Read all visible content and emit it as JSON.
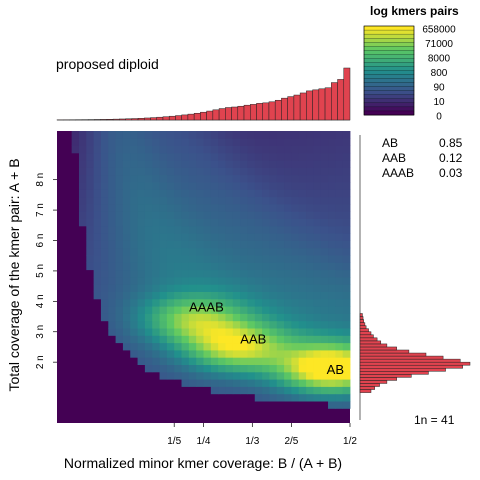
{
  "chart_data": {
    "type": "heatmap",
    "title": "proposed diploid",
    "xlabel": "Normalized minor kmer coverage: B / (A + B)",
    "ylabel": "Total coverage of the kmer pair: A + B",
    "xlim": [
      0,
      0.5
    ],
    "ylim": [
      0,
      9.6
    ],
    "x_ticks": [
      {
        "value": 0.2,
        "label": "1/5"
      },
      {
        "value": 0.25,
        "label": "1/4"
      },
      {
        "value": 0.3333,
        "label": "1/3"
      },
      {
        "value": 0.4,
        "label": "2/5"
      },
      {
        "value": 0.5,
        "label": "1/2"
      }
    ],
    "y_ticks": [
      {
        "value": 2,
        "label": "2 n"
      },
      {
        "value": 3,
        "label": "3 n"
      },
      {
        "value": 4,
        "label": "4 n"
      },
      {
        "value": 5,
        "label": "5 n"
      },
      {
        "value": 6,
        "label": "6 n"
      },
      {
        "value": 7,
        "label": "7 n"
      },
      {
        "value": 8,
        "label": "8 n"
      }
    ],
    "legend": {
      "title": "log kmers pairs",
      "labels": [
        "658000",
        "71000",
        "8000",
        "800",
        "90",
        "10",
        "0"
      ],
      "position": "top-right",
      "palette": [
        "#440154",
        "#3B528B",
        "#21908C",
        "#5DC863",
        "#FDE725"
      ]
    },
    "peaks": [
      {
        "label": "AB",
        "x": 0.465,
        "y": 1.8,
        "intensity": 1.0
      },
      {
        "label": "AAB",
        "x": 0.305,
        "y": 2.5,
        "intensity": 0.74
      },
      {
        "label": "AAAB",
        "x": 0.23,
        "y": 3.4,
        "intensity": 0.58
      }
    ],
    "annotations": [
      {
        "label": "AB",
        "x": 0.475,
        "y": 1.75
      },
      {
        "label": "AAB",
        "x": 0.335,
        "y": 2.75
      },
      {
        "label": "AAAB",
        "x": 0.255,
        "y": 3.8
      }
    ],
    "proportions": [
      {
        "name": "AB",
        "value": "0.85"
      },
      {
        "name": "AAB",
        "value": "0.12"
      },
      {
        "name": "AAAB",
        "value": "0.03"
      }
    ],
    "scale_note": "1n =  41",
    "x_hist": [
      0.3,
      0.4,
      0.5,
      0.6,
      0.7,
      0.8,
      1.0,
      1.2,
      1.4,
      1.7,
      2.0,
      2.4,
      2.8,
      3.3,
      3.9,
      4.6,
      5.4,
      6.3,
      7.3,
      8.5,
      9.8,
      11.3,
      13.0,
      15.0,
      17.2,
      19.6,
      22.0,
      24.0,
      25.0,
      26.5,
      28.5,
      30.0,
      32.0,
      33.0,
      35.0,
      38.0,
      42.0,
      45.0,
      48.0,
      52.0,
      56.0,
      58.0,
      60.0,
      62.0,
      72.0,
      78.0,
      100.0
    ],
    "y_hist": [
      {
        "y": 1.0,
        "count": 9
      },
      {
        "y": 1.1,
        "count": 12
      },
      {
        "y": 1.2,
        "count": 16
      },
      {
        "y": 1.3,
        "count": 22
      },
      {
        "y": 1.4,
        "count": 30
      },
      {
        "y": 1.5,
        "count": 42
      },
      {
        "y": 1.6,
        "count": 56
      },
      {
        "y": 1.7,
        "count": 70
      },
      {
        "y": 1.8,
        "count": 84
      },
      {
        "y": 1.9,
        "count": 90
      },
      {
        "y": 2.0,
        "count": 82
      },
      {
        "y": 2.1,
        "count": 68
      },
      {
        "y": 2.2,
        "count": 54
      },
      {
        "y": 2.3,
        "count": 40
      },
      {
        "y": 2.4,
        "count": 30
      },
      {
        "y": 2.5,
        "count": 22
      },
      {
        "y": 2.6,
        "count": 17
      },
      {
        "y": 2.7,
        "count": 14
      },
      {
        "y": 2.8,
        "count": 11
      },
      {
        "y": 2.9,
        "count": 9
      },
      {
        "y": 3.0,
        "count": 7
      },
      {
        "y": 3.1,
        "count": 5
      },
      {
        "y": 3.2,
        "count": 4
      },
      {
        "y": 3.3,
        "count": 3
      },
      {
        "y": 3.4,
        "count": 2.5
      },
      {
        "y": 3.5,
        "count": 2
      }
    ]
  }
}
